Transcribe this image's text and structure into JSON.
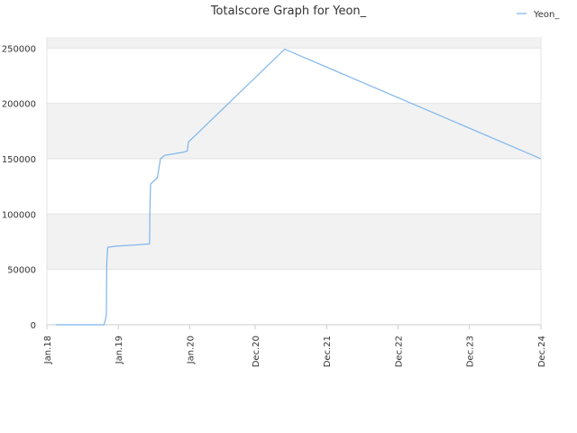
{
  "chart_data": {
    "type": "line",
    "title": "Totalscore Graph for Yeon_",
    "xlabel": "",
    "ylabel": "",
    "ylim": [
      0,
      260000
    ],
    "y_ticks": [
      0,
      50000,
      100000,
      150000,
      200000,
      250000
    ],
    "y_tick_labels": [
      "0",
      "50000",
      "100000",
      "150000",
      "200000",
      "250000"
    ],
    "x_ticks": [
      "2018-01-01",
      "2019-01-01",
      "2020-01-01",
      "2020-12-01",
      "2021-12-01",
      "2022-12-01",
      "2023-12-01",
      "2024-12-01"
    ],
    "x_tick_labels": [
      "Jan.18",
      "Jan.19",
      "Jan.20",
      "Dec.20",
      "Dec.21",
      "Dec.22",
      "Dec.23",
      "Dec.24"
    ],
    "xlim": [
      "2018-01-01",
      "2024-12-01"
    ],
    "grid": true,
    "legend_position": "top-right",
    "series": [
      {
        "name": "Yeon_",
        "color": "#7cb5ec",
        "points": [
          [
            "2018-02-15",
            0
          ],
          [
            "2018-10-20",
            0
          ],
          [
            "2018-10-28",
            5000
          ],
          [
            "2018-11-01",
            10000
          ],
          [
            "2018-11-03",
            55000
          ],
          [
            "2018-11-08",
            70000
          ],
          [
            "2018-12-20",
            71000
          ],
          [
            "2019-03-20",
            72000
          ],
          [
            "2019-06-10",
            73000
          ],
          [
            "2019-06-12",
            105000
          ],
          [
            "2019-06-15",
            127000
          ],
          [
            "2019-07-20",
            133000
          ],
          [
            "2019-08-05",
            150000
          ],
          [
            "2019-08-25",
            153000
          ],
          [
            "2019-12-01",
            156000
          ],
          [
            "2019-12-20",
            157000
          ],
          [
            "2019-12-25",
            165000
          ],
          [
            "2021-05-01",
            249000
          ],
          [
            "2024-12-01",
            150000
          ]
        ]
      }
    ]
  }
}
